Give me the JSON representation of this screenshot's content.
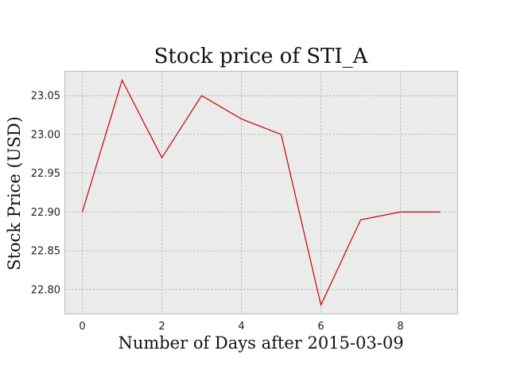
{
  "chart_data": {
    "type": "line",
    "title": "Stock price of STI_A",
    "xlabel": "Number of Days after 2015-03-09",
    "ylabel": "Stock Price (USD)",
    "x": [
      0,
      1,
      2,
      3,
      4,
      5,
      6,
      7,
      8,
      9
    ],
    "series": [
      {
        "values": [
          22.9,
          23.07,
          22.97,
          23.05,
          23.02,
          23.0,
          22.78,
          22.89,
          22.9,
          22.9
        ],
        "color": "#cc0000"
      }
    ],
    "xlim": [
      -0.45,
      9.45
    ],
    "ylim": [
      22.768,
      23.082
    ],
    "xticks": [
      0,
      2,
      4,
      6,
      8
    ],
    "xtick_labels": [
      "0",
      "2",
      "4",
      "6",
      "8"
    ],
    "yticks": [
      22.8,
      22.85,
      22.9,
      22.95,
      23.0,
      23.05
    ],
    "ytick_labels": [
      "22.80",
      "22.85",
      "22.90",
      "22.95",
      "23.00",
      "23.05"
    ],
    "grid": true,
    "style": {
      "plot_background": "#ebebeb",
      "grid_color": "#b0b0b0",
      "spine_color": "#bcbcbc"
    }
  }
}
